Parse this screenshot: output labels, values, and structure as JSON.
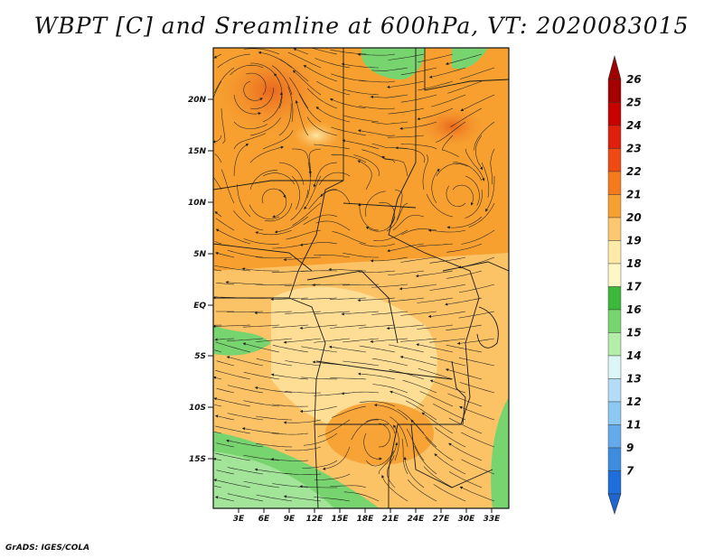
{
  "title": "WBPT [C] and Sreamline at 600hPa, VT: 2020083015",
  "footer": "GrADS: IGES/COLA",
  "map": {
    "lat_labels": [
      "20N",
      "15N",
      "10N",
      "5N",
      "EQ",
      "5S",
      "10S",
      "15S"
    ],
    "lon_labels": [
      "3E",
      "6E",
      "9E",
      "12E",
      "15E",
      "18E",
      "21E",
      "24E",
      "27E",
      "30E",
      "33E"
    ]
  },
  "colorbar": {
    "levels": [
      "26",
      "25",
      "24",
      "23",
      "22",
      "21",
      "20",
      "19",
      "18",
      "17",
      "16",
      "15",
      "14",
      "13",
      "12",
      "11",
      "9",
      "7"
    ],
    "colors": [
      "#a50000",
      "#c80000",
      "#e0200c",
      "#ef4a14",
      "#f57a1c",
      "#f7a030",
      "#fbc870",
      "#fde9a8",
      "#fdf7c6",
      "#3cb83c",
      "#78d46e",
      "#b4ecaa",
      "#dcf6f6",
      "#b4dcf6",
      "#8cc8f2",
      "#64aaea",
      "#3c8ce0",
      "#1e6edc"
    ],
    "tip_top": "#a00000",
    "tip_bottom": "#1e64d2"
  }
}
